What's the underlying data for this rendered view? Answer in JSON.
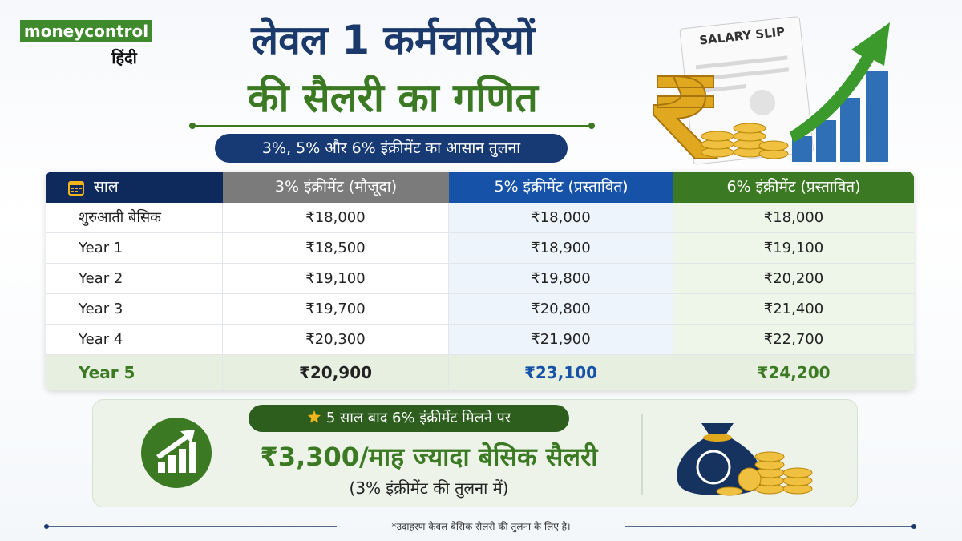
{
  "logo": {
    "brand": "moneycontrol",
    "language": "हिंदी"
  },
  "header": {
    "title_line1": "लेवल 1 कर्मचारियों",
    "title_line2": "की सैलरी का गणित",
    "subtitle": "3%, 5% और 6% इंक्रीमेंट का आसान तुलना"
  },
  "illustration": {
    "slip_label": "SALARY SLIP"
  },
  "table": {
    "columns": [
      "साल",
      "3% इंक्रीमेंट (मौजूदा)",
      "5% इंक्रीमेंट (प्रस्तावित)",
      "6% इंक्रीमेंट (प्रस्तावित)"
    ],
    "rows": [
      [
        "शुरुआती बेसिक",
        "₹18,000",
        "₹18,000",
        "₹18,000"
      ],
      [
        "Year 1",
        "₹18,500",
        "₹18,900",
        "₹19,100"
      ],
      [
        "Year 2",
        "₹19,100",
        "₹19,800",
        "₹20,200"
      ],
      [
        "Year 3",
        "₹19,700",
        "₹20,800",
        "₹21,400"
      ],
      [
        "Year 4",
        "₹20,300",
        "₹21,900",
        "₹22,700"
      ],
      [
        "Year 5",
        "₹20,900",
        "₹23,100",
        "₹24,200"
      ]
    ]
  },
  "callout": {
    "badge": "5 साल बाद 6% इंक्रीमेंट मिलने पर",
    "headline": "₹3,300/माह ज्यादा बेसिक सैलरी",
    "note": "(3% इंक्रीमेंट की तुलना में)"
  },
  "footnote": "*उदाहरण केवल बेसिक सैलरी की तुलना के लिए है।"
}
